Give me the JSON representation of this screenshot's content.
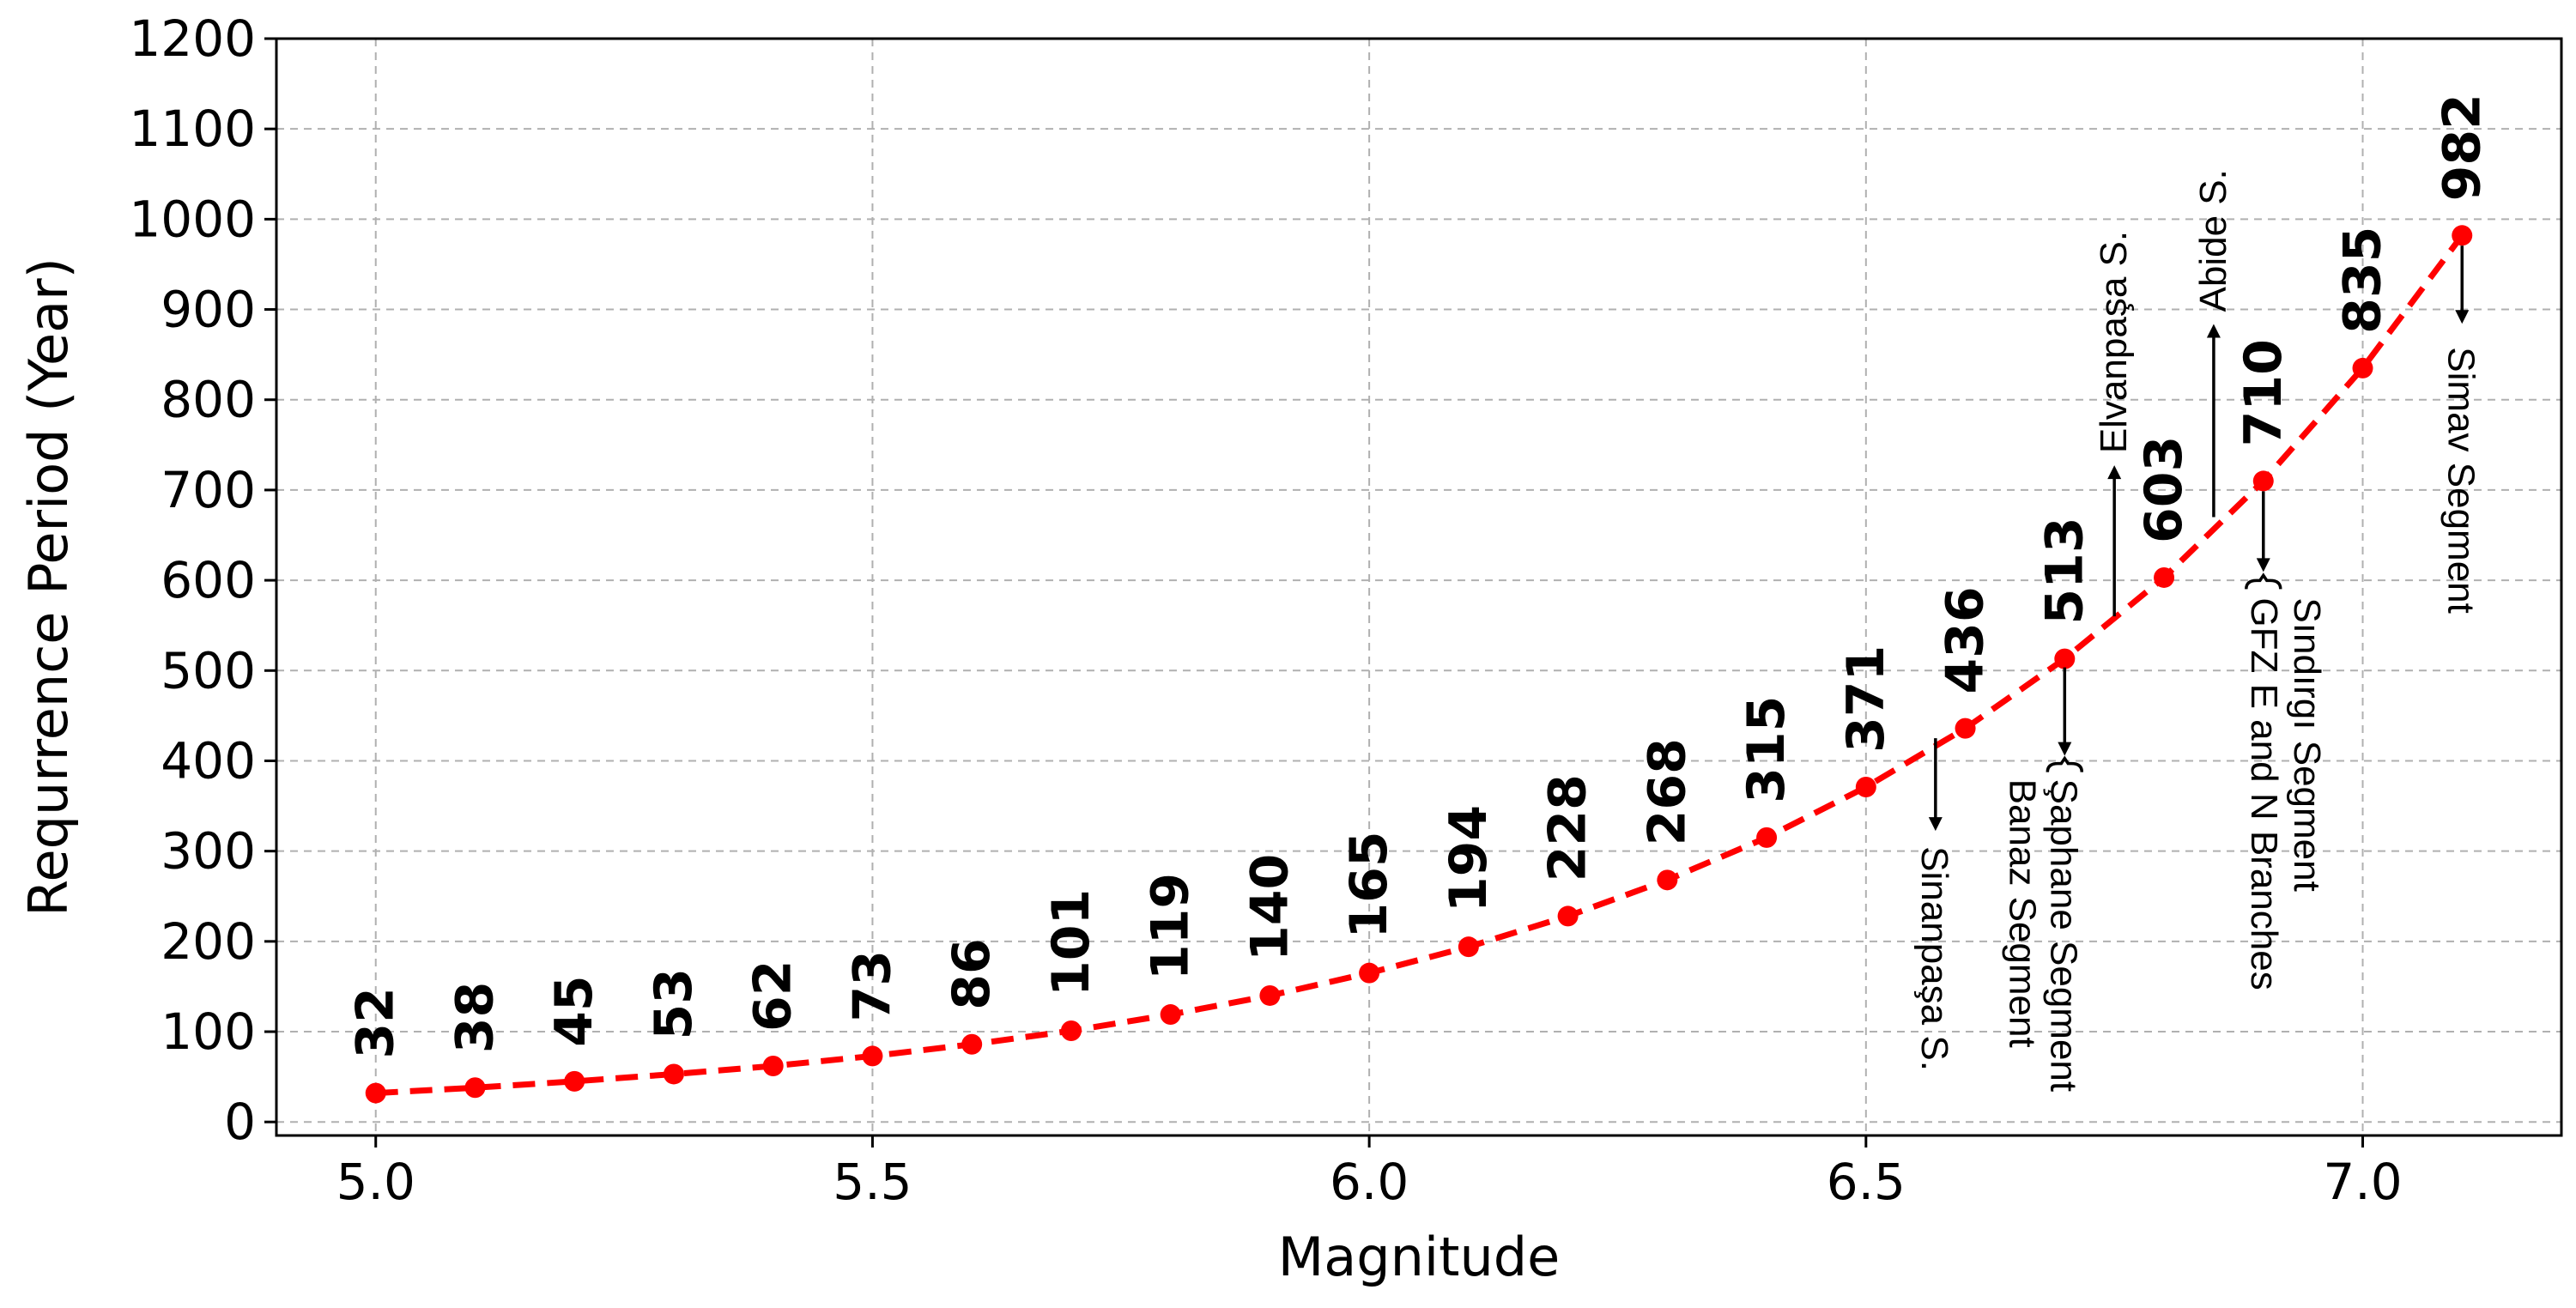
{
  "chart_data": {
    "type": "line",
    "title": "",
    "xlabel": "Magnitude",
    "ylabel": "Requrrence Period (Year)",
    "xlim": [
      4.9,
      7.2
    ],
    "ylim": [
      -15,
      1200
    ],
    "xticks": [
      5.0,
      5.5,
      6.0,
      6.5,
      7.0
    ],
    "xtick_labels": [
      "5.0",
      "5.5",
      "6.0",
      "6.5",
      "7.0"
    ],
    "yticks": [
      0,
      100,
      200,
      300,
      400,
      500,
      600,
      700,
      800,
      900,
      1000,
      1100,
      1200
    ],
    "ytick_labels": [
      "0",
      "100",
      "200",
      "300",
      "400",
      "500",
      "600",
      "700",
      "800",
      "900",
      "1000",
      "1100",
      "1200"
    ],
    "grid": true,
    "series": [
      {
        "name": "Recurrence period",
        "color": "#ff0000",
        "line_style": "dashed",
        "marker": "circle",
        "x": [
          5.0,
          5.1,
          5.2,
          5.3,
          5.4,
          5.5,
          5.6,
          5.7,
          5.8,
          5.9,
          6.0,
          6.1,
          6.2,
          6.3,
          6.4,
          6.5,
          6.6,
          6.7,
          6.8,
          6.9,
          7.0,
          7.1
        ],
        "values": [
          32,
          38,
          45,
          53,
          62,
          73,
          86,
          101,
          119,
          140,
          165,
          194,
          228,
          268,
          315,
          371,
          436,
          513,
          603,
          710,
          835,
          982
        ],
        "labels": [
          "32",
          "38",
          "45",
          "53",
          "62",
          "73",
          "86",
          "101",
          "119",
          "140",
          "165",
          "194",
          "228",
          "268",
          "315",
          "371",
          "436",
          "513",
          "603",
          "710",
          "835",
          "982"
        ]
      }
    ],
    "annotations": [
      {
        "text": "Sinanpaşa S.",
        "x": 6.57,
        "y": 425,
        "direction": "down"
      },
      {
        "text": "Şaphane Segment",
        "x": 6.7,
        "y": 513,
        "direction": "down",
        "bracket": true
      },
      {
        "text": "Banaz Segment",
        "x": 6.7,
        "y": 513,
        "direction": "down",
        "bracket": true
      },
      {
        "text": "Elvanpaşa S.",
        "x": 6.75,
        "y": 560,
        "direction": "up"
      },
      {
        "text": "Abide S.",
        "x": 6.85,
        "y": 670,
        "direction": "up"
      },
      {
        "text": "Sındırgı Segment",
        "x": 6.9,
        "y": 710,
        "direction": "down",
        "bracket": true
      },
      {
        "text": "GFZ E and N Branches",
        "x": 6.9,
        "y": 710,
        "direction": "down",
        "bracket": true
      },
      {
        "text": "Simav Segment",
        "x": 7.1,
        "y": 982,
        "direction": "down"
      }
    ]
  }
}
